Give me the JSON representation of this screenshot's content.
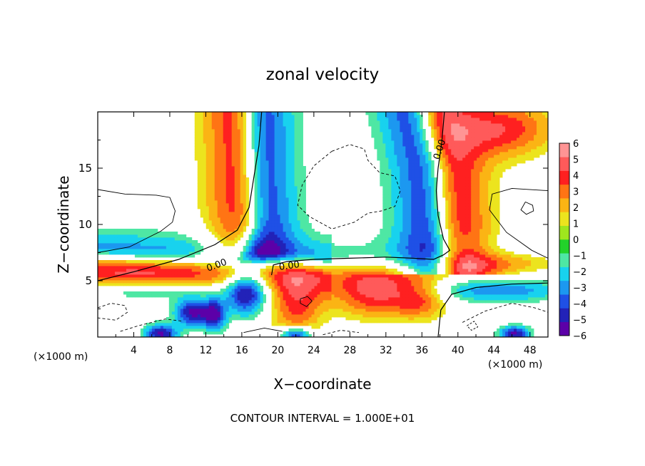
{
  "chart_data": {
    "type": "heatmap",
    "title": "zonal velocity",
    "xlabel": "X−coordinate",
    "ylabel": "Z−coordinate",
    "x_unit_left": "(×1000 m)",
    "x_unit_right": "(×1000 m)",
    "xlim": [
      0,
      50
    ],
    "ylim": [
      0,
      20
    ],
    "x_ticks": [
      4,
      8,
      12,
      16,
      20,
      24,
      28,
      32,
      36,
      40,
      44,
      48
    ],
    "y_ticks": [
      5,
      10,
      15
    ],
    "colorbar": {
      "ticks": [
        6,
        5,
        4,
        3,
        2,
        1,
        0,
        -1,
        -2,
        -3,
        -4,
        -5,
        -6
      ],
      "colors": [
        "#5c00a8",
        "#2222b8",
        "#1f50e6",
        "#1c98f0",
        "#18d2ee",
        "#4ee7a4",
        "#22d22a",
        "#9fe61e",
        "#ece41e",
        "#fbb414",
        "#ff7414",
        "#ff2020",
        "#ff5a5a",
        "#ff9494"
      ]
    },
    "contour_labels": [
      "0.00",
      "0.00",
      "0.00"
    ],
    "footer": "CONTOUR INTERVAL = 1.000E+01"
  }
}
